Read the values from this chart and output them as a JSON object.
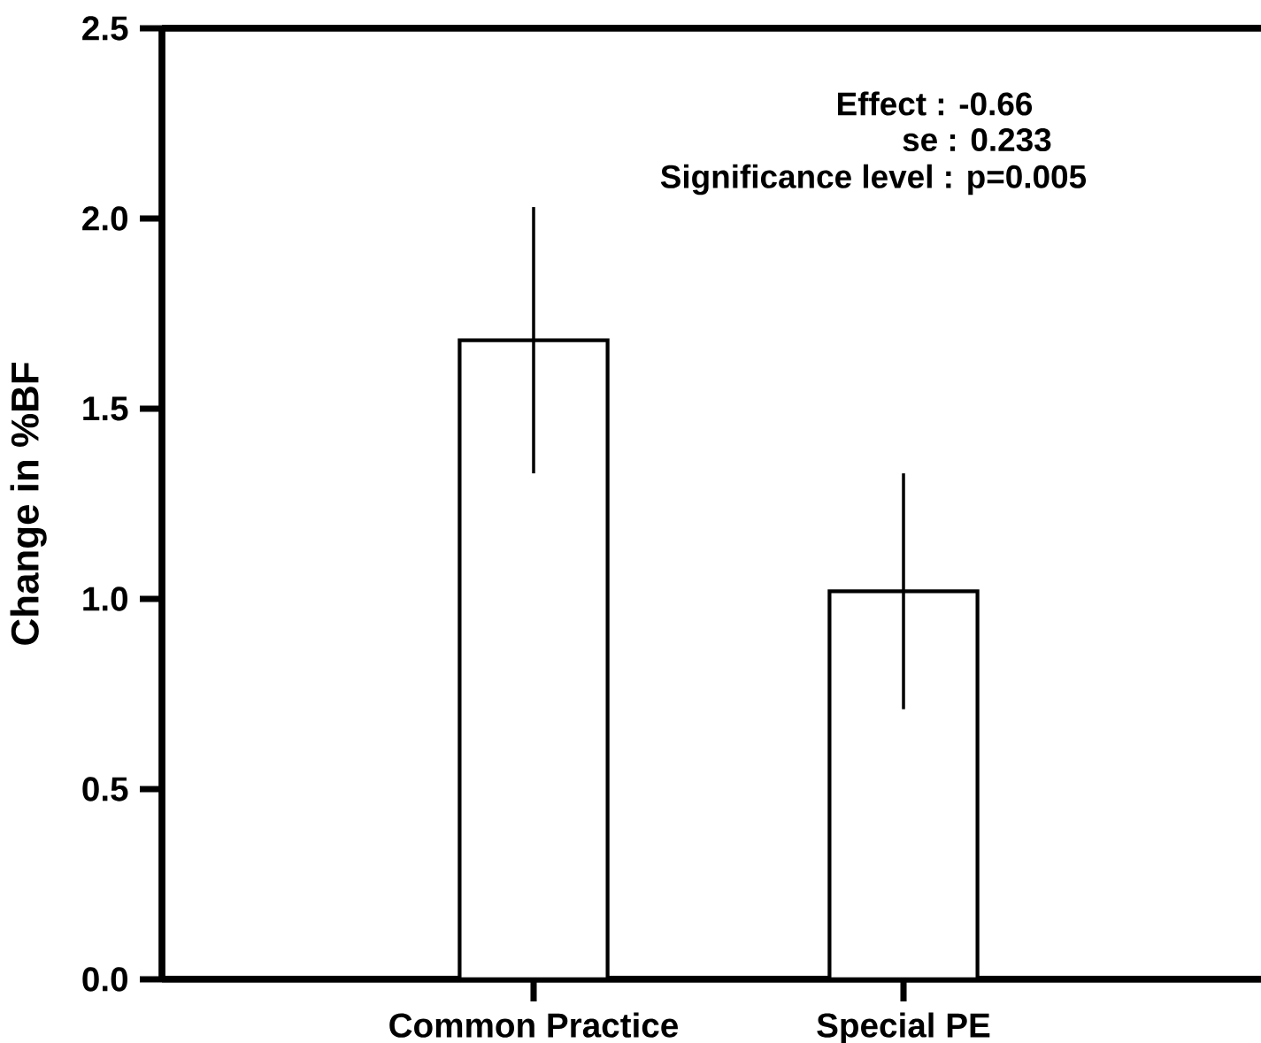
{
  "chart_data": {
    "type": "bar",
    "ylabel": "Change in %BF",
    "categories": [
      "Common Practice",
      "Special PE"
    ],
    "values": [
      1.68,
      1.02
    ],
    "errors": [
      0.35,
      0.31
    ],
    "color": "#ffffff",
    "ylim": [
      0,
      2.5
    ],
    "yticks": [
      {
        "value": 0,
        "label": "0.0"
      },
      {
        "value": 0.5,
        "label": "0.5"
      },
      {
        "value": 1,
        "label": "1.0"
      },
      {
        "value": 1.5,
        "label": "1.5"
      },
      {
        "value": 2,
        "label": "2.0"
      },
      {
        "value": 2.5,
        "label": "2.5"
      }
    ],
    "annotations": [
      "Effect : -0.66",
      "se : 0.233",
      "Significance level : p=0.005"
    ]
  }
}
